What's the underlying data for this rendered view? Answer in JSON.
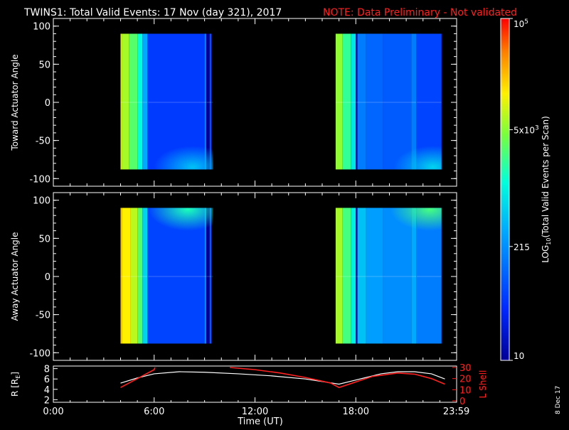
{
  "title": {
    "main": "TWINS1: Total Valid Events: 17 Nov (day 321), 2017",
    "note": "NOTE: Data Preliminary - Not validated"
  },
  "colorbar": {
    "label_prefix": "LOG",
    "label_sub": "10",
    "label_suffix": "(Total Valid Events per Scan)",
    "ticks": [
      {
        "value": 10,
        "text": "10"
      },
      {
        "value": 215,
        "text": "215"
      },
      {
        "value": 5000,
        "text": "5x10",
        "sup": "3"
      },
      {
        "value": 100000,
        "text": "10",
        "sup": "5"
      }
    ],
    "range": [
      10,
      100000
    ],
    "log": true
  },
  "footer": {
    "time_label": "Time (UT)",
    "date_stamp": "8 Dec 17"
  },
  "chart_data": [
    {
      "type": "heatmap",
      "name": "toward",
      "ylabel": "Toward Actuator Angle",
      "xlim": [
        0,
        24
      ],
      "ylim": [
        -110,
        110
      ],
      "yticks": [
        -100,
        -50,
        0,
        50,
        100
      ],
      "data_ylim": [
        -88,
        90
      ],
      "blocks": [
        {
          "x_start": 4.0,
          "x_end": 9.5,
          "columns": [
            {
              "x0": 4.0,
              "x1": 4.1,
              "level": 0.74
            },
            {
              "x0": 4.1,
              "x1": 4.5,
              "level": 0.7
            },
            {
              "x0": 4.5,
              "x1": 5.0,
              "level": 0.62
            },
            {
              "x0": 5.0,
              "x1": 5.3,
              "level": 0.52
            },
            {
              "x0": 5.3,
              "x1": 5.6,
              "level": 0.38
            },
            {
              "x0": 5.6,
              "x1": 9.0,
              "level": 0.18
            },
            {
              "x0": 9.0,
              "x1": 9.1,
              "level": 0.3
            },
            {
              "x0": 9.1,
              "x1": 9.3,
              "level": 0.0
            },
            {
              "x0": 9.3,
              "x1": 9.4,
              "level": 0.22
            }
          ],
          "corner_glow": {
            "x": 8.3,
            "y": -85,
            "level": 0.42
          }
        },
        {
          "x_start": 16.8,
          "x_end": 23.1,
          "columns": [
            {
              "x0": 16.8,
              "x1": 17.2,
              "level": 0.68
            },
            {
              "x0": 17.2,
              "x1": 17.7,
              "level": 0.58
            },
            {
              "x0": 17.7,
              "x1": 18.0,
              "level": 0.48
            },
            {
              "x0": 18.0,
              "x1": 18.1,
              "level": 0.05
            },
            {
              "x0": 18.1,
              "x1": 18.6,
              "level": 0.3
            },
            {
              "x0": 18.6,
              "x1": 19.6,
              "level": 0.26
            },
            {
              "x0": 19.6,
              "x1": 21.3,
              "level": 0.24
            },
            {
              "x0": 21.3,
              "x1": 21.6,
              "level": 0.3
            },
            {
              "x0": 21.6,
              "x1": 23.1,
              "level": 0.2
            }
          ],
          "corner_glow": {
            "x": 22.6,
            "y": -85,
            "level": 0.45
          }
        }
      ]
    },
    {
      "type": "heatmap",
      "name": "away",
      "ylabel": "Away Actuator Angle",
      "xlim": [
        0,
        24
      ],
      "ylim": [
        -110,
        110
      ],
      "yticks": [
        -100,
        -50,
        0,
        50,
        100
      ],
      "data_ylim": [
        -88,
        90
      ],
      "blocks": [
        {
          "x_start": 4.0,
          "x_end": 9.5,
          "columns": [
            {
              "x0": 4.0,
              "x1": 4.1,
              "level": 0.82
            },
            {
              "x0": 4.1,
              "x1": 4.6,
              "level": 0.78
            },
            {
              "x0": 4.6,
              "x1": 5.0,
              "level": 0.72
            },
            {
              "x0": 5.0,
              "x1": 5.3,
              "level": 0.62
            },
            {
              "x0": 5.3,
              "x1": 5.6,
              "level": 0.45
            },
            {
              "x0": 5.6,
              "x1": 9.0,
              "level": 0.2
            },
            {
              "x0": 9.0,
              "x1": 9.1,
              "level": 0.32
            },
            {
              "x0": 9.1,
              "x1": 9.3,
              "level": 0.0
            },
            {
              "x0": 9.3,
              "x1": 9.4,
              "level": 0.24
            }
          ],
          "corner_glow": {
            "x": 8.0,
            "y": 88,
            "level": 0.55
          }
        },
        {
          "x_start": 16.8,
          "x_end": 23.1,
          "columns": [
            {
              "x0": 16.8,
              "x1": 17.2,
              "level": 0.7
            },
            {
              "x0": 17.2,
              "x1": 17.7,
              "level": 0.6
            },
            {
              "x0": 17.7,
              "x1": 18.0,
              "level": 0.5
            },
            {
              "x0": 18.0,
              "x1": 18.1,
              "level": 0.05
            },
            {
              "x0": 18.1,
              "x1": 18.6,
              "level": 0.42
            },
            {
              "x0": 18.6,
              "x1": 19.6,
              "level": 0.36
            },
            {
              "x0": 19.6,
              "x1": 21.3,
              "level": 0.33
            },
            {
              "x0": 21.3,
              "x1": 21.6,
              "level": 0.38
            },
            {
              "x0": 21.6,
              "x1": 23.1,
              "level": 0.3
            }
          ],
          "corner_glow": {
            "x": 22.4,
            "y": 88,
            "level": 0.6
          }
        }
      ]
    },
    {
      "type": "line",
      "name": "orbit",
      "ylabel_left": "R [R",
      "ylabel_left_sub": "E",
      "ylabel_left_suffix": "]",
      "ylabel_right": "L Shell",
      "xlim": [
        0,
        24
      ],
      "ylim": [
        1.5,
        8.5
      ],
      "ylim_right": [
        0,
        30
      ],
      "yticks": [
        2,
        4,
        6,
        8
      ],
      "yticks_right": [
        0,
        10,
        20,
        30
      ],
      "xticks": [
        {
          "value": 0,
          "label": "0:00"
        },
        {
          "value": 6,
          "label": "6:00"
        },
        {
          "value": 12,
          "label": "12:00"
        },
        {
          "value": 18,
          "label": "18:00"
        },
        {
          "value": 23.983,
          "label": "23:59"
        }
      ],
      "series": [
        {
          "name": "R",
          "axis": "left",
          "color": "#ffffff",
          "x": [
            4.0,
            5.0,
            6.0,
            7.5,
            9.0,
            11.0,
            13.0,
            15.0,
            17.0,
            18.0,
            19.5,
            20.5,
            21.5,
            22.5,
            23.3
          ],
          "y": [
            5.2,
            6.2,
            7.0,
            7.4,
            7.3,
            7.0,
            6.6,
            6.0,
            5.0,
            5.8,
            7.0,
            7.4,
            7.4,
            7.0,
            6.0
          ]
        },
        {
          "name": "L Shell",
          "axis": "right",
          "color": "#ff2020",
          "segments": [
            {
              "x": [
                4.0,
                5.0,
                6.0,
                6.05
              ],
              "y": [
                12,
                20,
                28,
                30
              ]
            },
            {
              "x": [
                10.5,
                12.0,
                13.5,
                15.0,
                16.5,
                17.0,
                17.8,
                19.0,
                20.5,
                21.5,
                22.5,
                23.3
              ],
              "y": [
                30,
                28,
                25,
                21,
                16,
                12,
                16,
                22,
                25,
                24,
                20,
                15
              ]
            }
          ]
        }
      ]
    }
  ]
}
